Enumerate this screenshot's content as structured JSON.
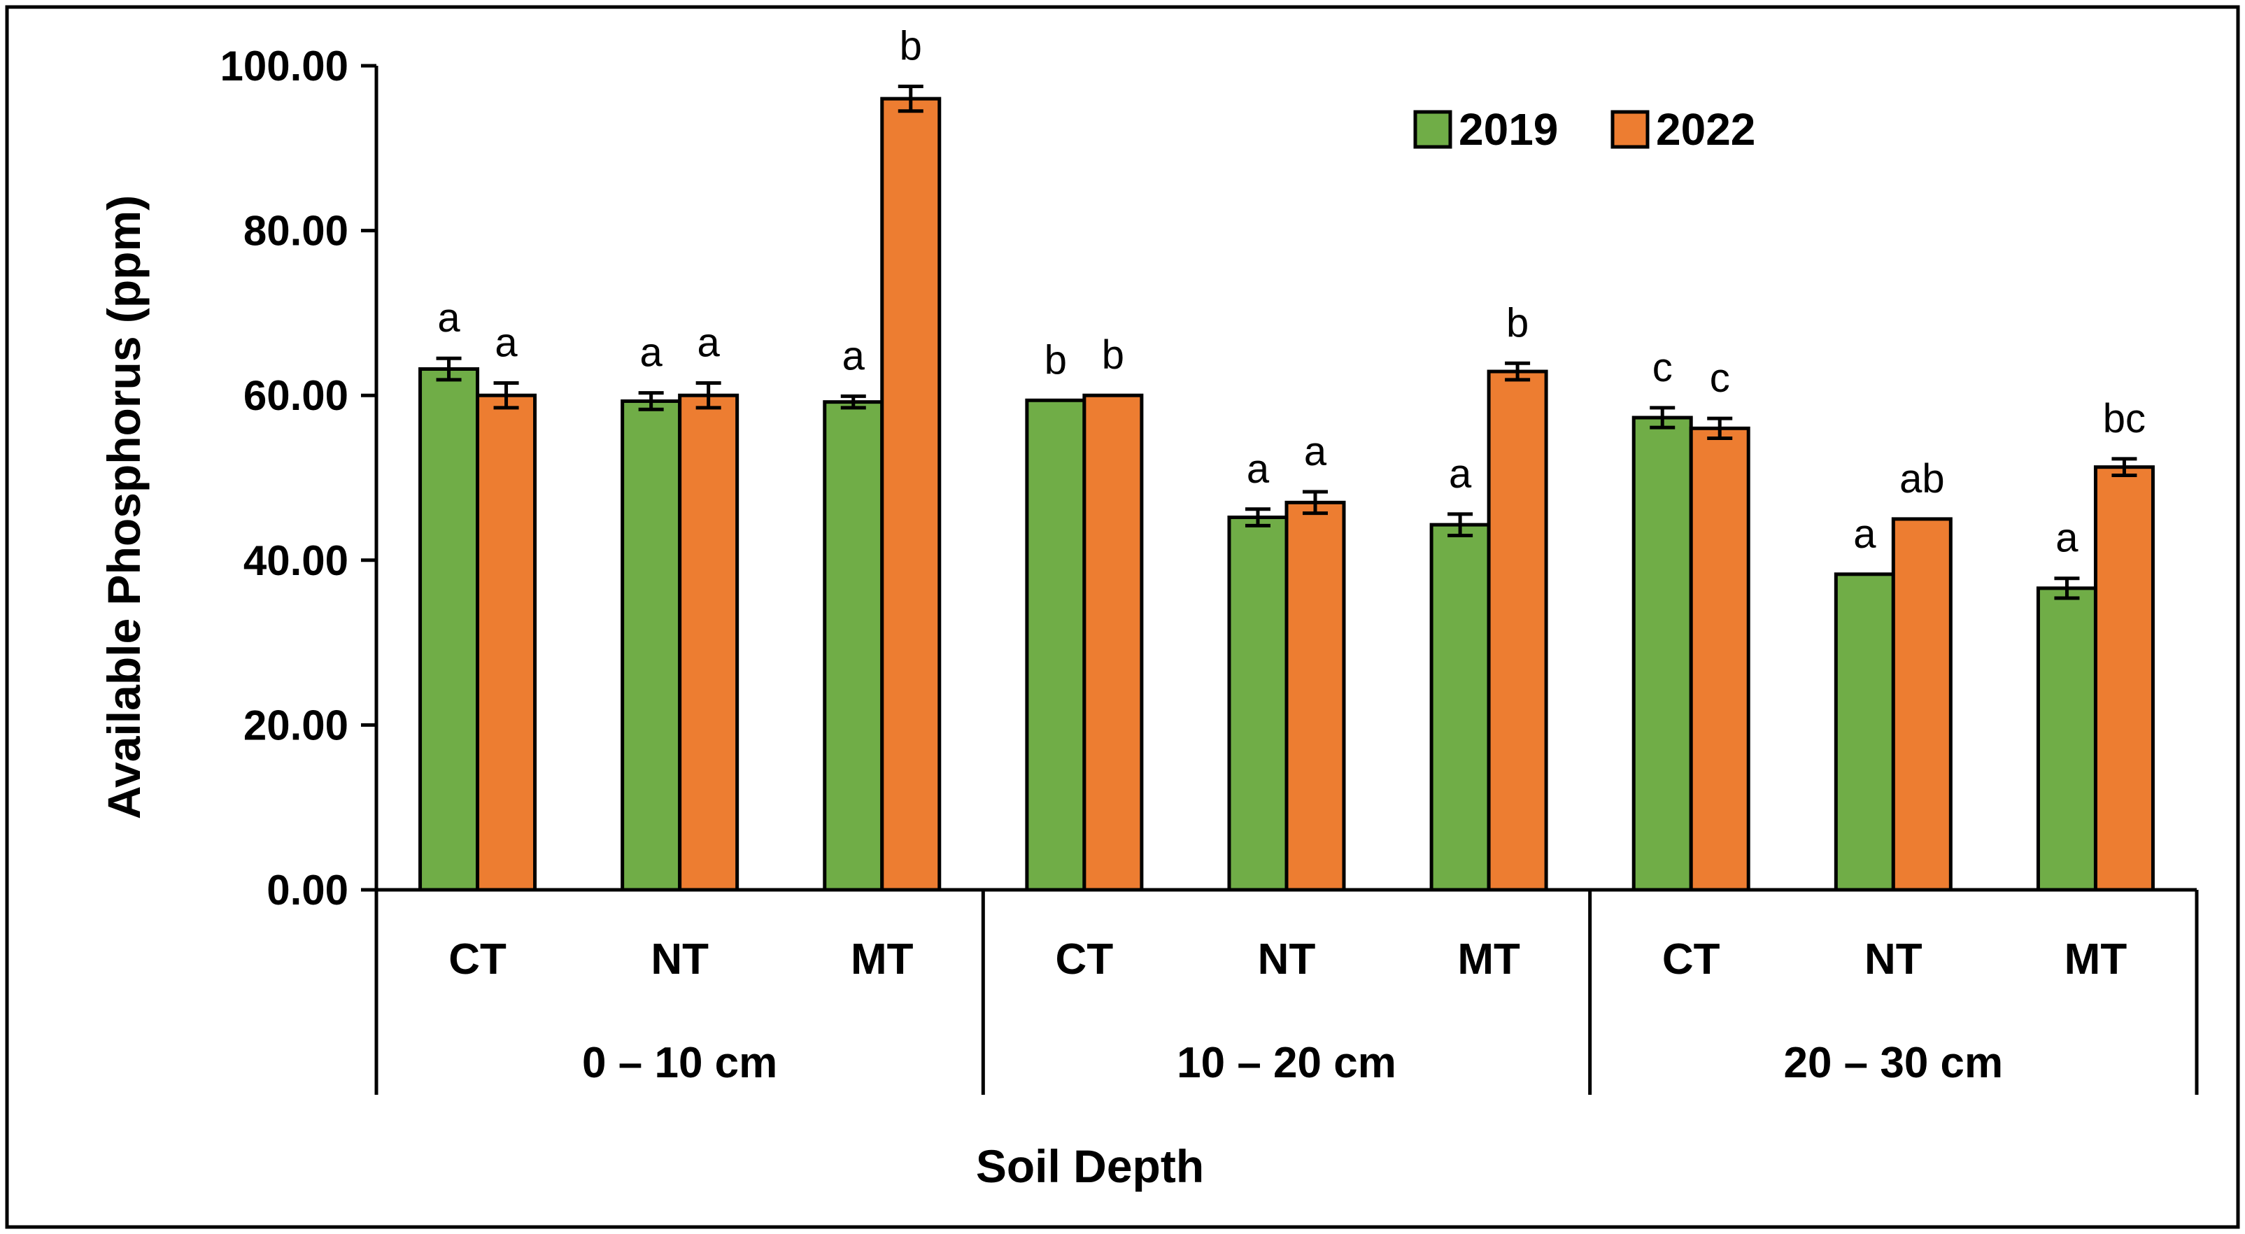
{
  "chart_data": {
    "type": "bar",
    "title": "",
    "ylabel": "Available Phosphorus (ppm)",
    "xlabel": "Soil Depth",
    "ylim": [
      0,
      100
    ],
    "yticks": [
      "0.00",
      "20.00",
      "40.00",
      "60.00",
      "80.00",
      "100.00"
    ],
    "ytick_values": [
      0,
      20,
      40,
      60,
      80,
      100
    ],
    "legend_position": "top-right",
    "groups": [
      {
        "label": "0 – 10 cm",
        "categories": [
          "CT",
          "NT",
          "MT"
        ]
      },
      {
        "label": "10 – 20 cm",
        "categories": [
          "CT",
          "NT",
          "MT"
        ]
      },
      {
        "label": "20 – 30 cm",
        "categories": [
          "CT",
          "NT",
          "MT"
        ]
      }
    ],
    "categories": [
      "CT",
      "NT",
      "MT",
      "CT",
      "NT",
      "MT",
      "CT",
      "NT",
      "MT"
    ],
    "series": [
      {
        "name": "2019",
        "color": "#70ad47",
        "values": [
          63.2,
          59.3,
          59.2,
          59.4,
          45.2,
          44.3,
          57.3,
          38.3,
          36.6
        ],
        "errors": [
          1.3,
          1.0,
          0.7,
          0.0,
          1.0,
          1.3,
          1.2,
          0.0,
          1.2
        ],
        "letters": [
          "a",
          "a",
          "a",
          "b",
          "a",
          "a",
          "c",
          "a",
          "a"
        ]
      },
      {
        "name": "2022",
        "color": "#ed7d31",
        "values": [
          60.0,
          60.0,
          96.0,
          60.0,
          47.0,
          62.9,
          56.0,
          45.0,
          51.3
        ],
        "errors": [
          1.5,
          1.5,
          1.5,
          0.0,
          1.3,
          1.0,
          1.2,
          0.0,
          1.0
        ],
        "letters": [
          "a",
          "a",
          "b",
          "b",
          "a",
          "b",
          "c",
          "ab",
          "bc"
        ]
      }
    ]
  }
}
